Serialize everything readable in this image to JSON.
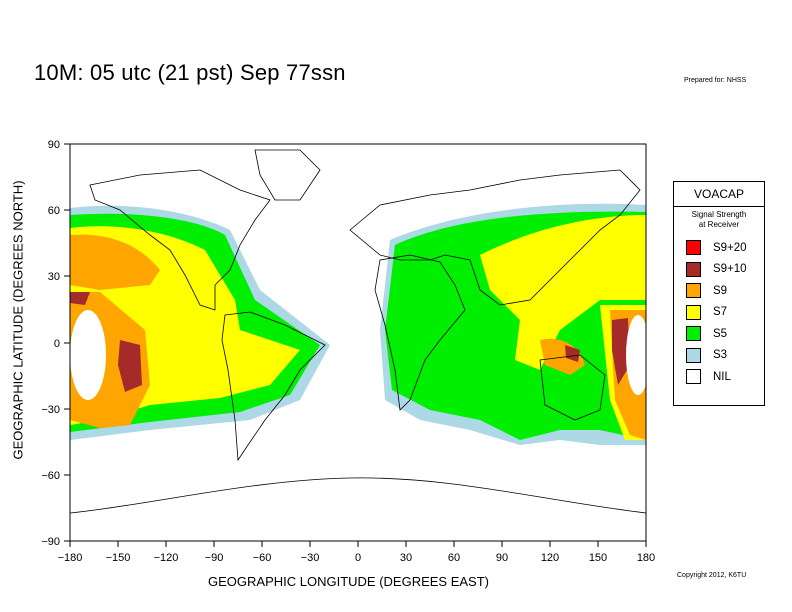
{
  "title": "10M:  05 utc (21 pst) Sep 77ssn",
  "prepared_for": "Prepared for: NHSS",
  "copyright": "Copyright 2012, K6TU",
  "x_axis": {
    "label": "GEOGRAPHIC LONGITUDE (DEGREES EAST)",
    "ticks": [
      "−180",
      "−150",
      "−120",
      "−90",
      "−60",
      "−30",
      "0",
      "30",
      "60",
      "90",
      "120",
      "150",
      "180"
    ]
  },
  "y_axis": {
    "label": "GEOGRAPHIC LATITUDE (DEGREES NORTH)",
    "ticks": [
      "90",
      "60",
      "30",
      "0",
      "−30",
      "−60",
      "−90"
    ]
  },
  "legend": {
    "title": "VOACAP",
    "subtitle_line1": "Signal Strength",
    "subtitle_line2": "at Receiver",
    "items": [
      {
        "label": "S9+20",
        "color": "#ff0000"
      },
      {
        "label": "S9+10",
        "color": "#a52a2a"
      },
      {
        "label": "S9",
        "color": "#ffa500"
      },
      {
        "label": "S7",
        "color": "#ffff00"
      },
      {
        "label": "S5",
        "color": "#00ee00"
      },
      {
        "label": "S3",
        "color": "#add8e6"
      },
      {
        "label": "NIL",
        "color": "#ffffff"
      }
    ]
  }
}
